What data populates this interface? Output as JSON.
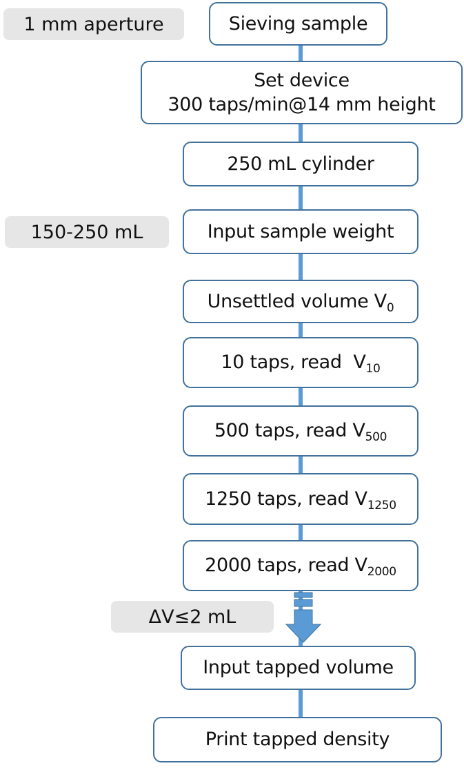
{
  "steps": [
    {
      "text": "Sieving sample"
    },
    {
      "line1": "Set device",
      "line2": "300 taps/min@14 mm height"
    },
    {
      "text": "250 mL cylinder"
    },
    {
      "text": "Input sample weight"
    },
    {
      "text": "Unsettled volume V",
      "sub": "0"
    },
    {
      "text": "10 taps, read  V",
      "sub": "10"
    },
    {
      "text": "500 taps, read V",
      "sub": "500"
    },
    {
      "text": "1250 taps, read V",
      "sub": "1250"
    },
    {
      "text": "2000 taps, read V",
      "sub": "2000"
    },
    {
      "text": "Input tapped volume"
    },
    {
      "text": "Print tapped density"
    }
  ],
  "notes": {
    "aperture": "1 mm aperture",
    "volume_range": "150-250 mL",
    "delta": "ΔV≤2 mL"
  },
  "colors": {
    "border": "#41719c",
    "connector": "#5b9bd5",
    "note_bg": "#e6e6e6"
  }
}
